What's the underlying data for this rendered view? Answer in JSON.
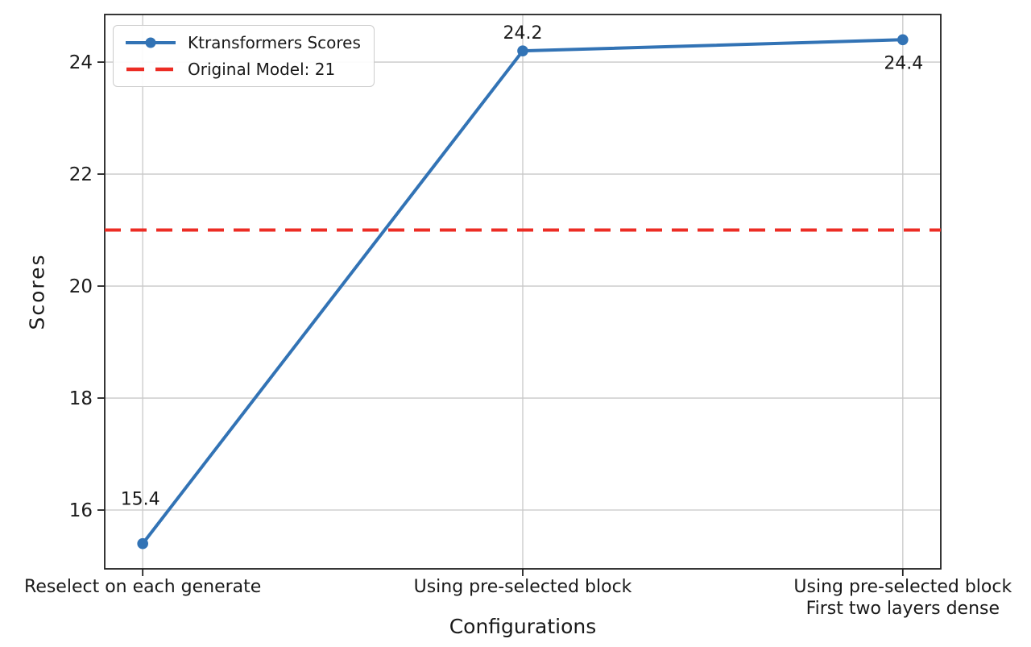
{
  "chart_data": {
    "type": "line",
    "title": "",
    "xlabel": "Configurations",
    "ylabel": "Scores",
    "categories": [
      "Reselect on each generate",
      "Using pre-selected block",
      "Using pre-selected block\nFirst two layers dense"
    ],
    "series": [
      {
        "name": "Ktransformers Scores",
        "values": [
          15.4,
          24.2,
          24.4
        ],
        "color": "#3273b5",
        "marker": "circle"
      }
    ],
    "reference_line": {
      "label": "Original Model: 21",
      "value": 21,
      "color": "#ec2c24",
      "style": "dashed"
    },
    "point_labels": [
      "15.4",
      "24.2",
      "24.4"
    ],
    "ylim": [
      14.95,
      24.85
    ],
    "yticks": [
      16,
      18,
      20,
      22,
      24
    ],
    "grid": true,
    "grid_color": "#c8c8c8",
    "spine_color": "#202020",
    "text_color": "#1a1a1a",
    "legend_position": "upper-left"
  }
}
